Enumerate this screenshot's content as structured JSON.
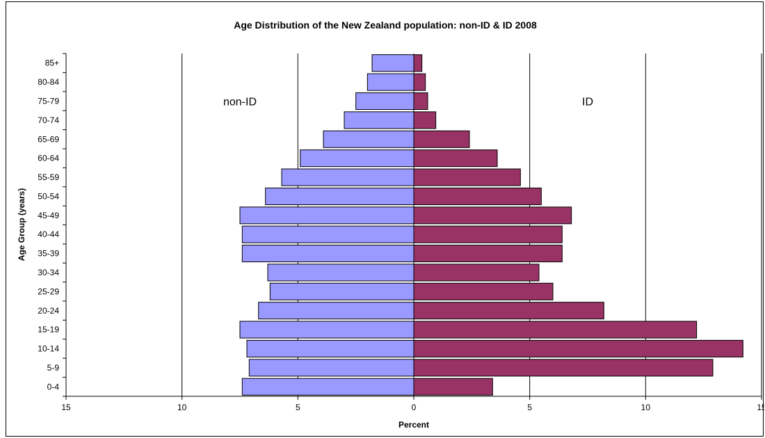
{
  "chart_data": {
    "type": "bar",
    "orientation": "horizontal",
    "title": "Age Distribution of the New Zealand population: non-ID & ID 2008",
    "xlabel": "Percent",
    "ylabel": "Age Group (years)",
    "xlim": [
      -15,
      15
    ],
    "xticks": [
      -15,
      -10,
      -5,
      0,
      5,
      10,
      15
    ],
    "xtick_labels": [
      "15",
      "10",
      "5",
      "0",
      "5",
      "10",
      "15"
    ],
    "grid": "vertical",
    "categories": [
      "0-4",
      "5-9",
      "10-14",
      "15-19",
      "20-24",
      "25-29",
      "30-34",
      "35-39",
      "40-44",
      "45-49",
      "50-54",
      "55-59",
      "60-64",
      "65-69",
      "70-74",
      "75-79",
      "80-84",
      "85+"
    ],
    "series": [
      {
        "name": "",
        "color": "#9999ff",
        "side": "left",
        "values": [
          7.4,
          7.1,
          7.2,
          7.5,
          6.7,
          6.2,
          6.3,
          7.4,
          7.4,
          7.5,
          6.4,
          5.7,
          4.9,
          3.9,
          3.0,
          2.5,
          2.0,
          1.8
        ]
      },
      {
        "name": "",
        "color": "#993366",
        "side": "right",
        "values": [
          3.4,
          12.9,
          14.2,
          12.2,
          8.2,
          6.0,
          5.4,
          6.4,
          6.4,
          6.8,
          5.5,
          4.6,
          3.6,
          2.4,
          0.95,
          0.6,
          0.5,
          0.35
        ]
      }
    ],
    "annotations": [
      {
        "text": "non-ID",
        "x": -7.5,
        "category": "75-79"
      },
      {
        "text": "ID",
        "x": 7.5,
        "category": "75-79"
      }
    ]
  }
}
